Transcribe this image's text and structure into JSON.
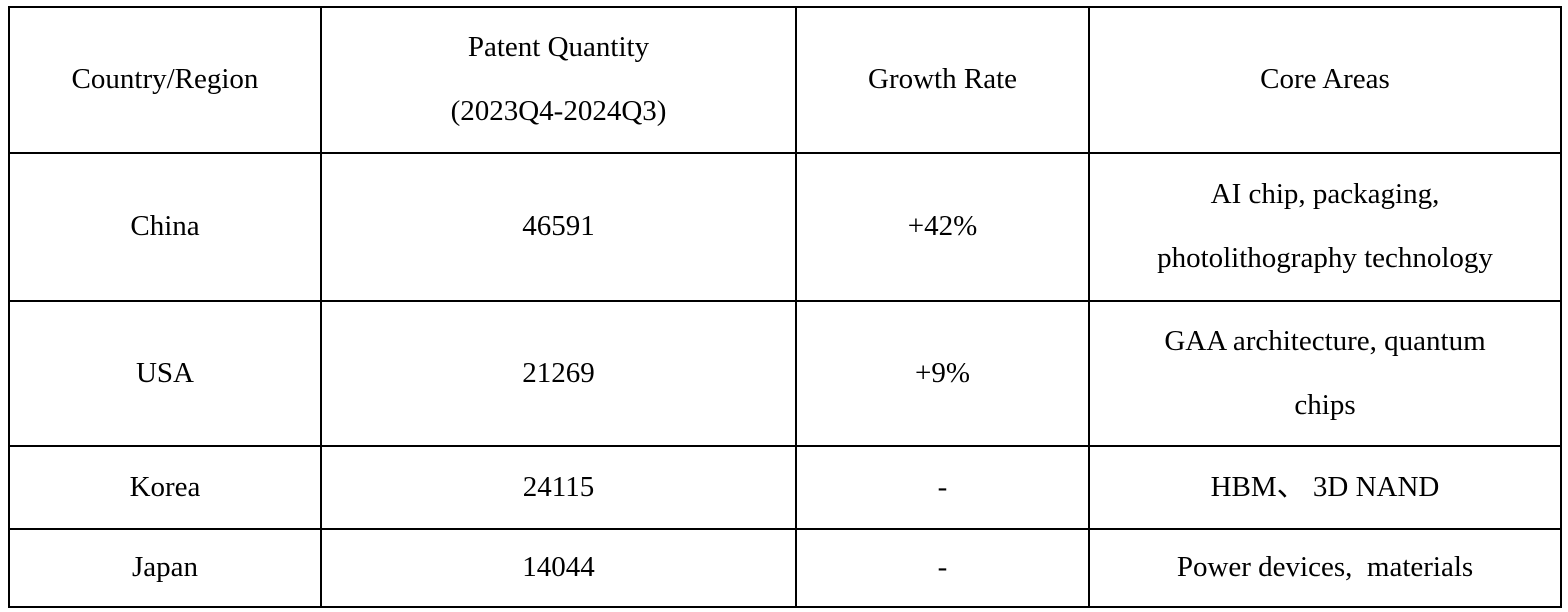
{
  "table": {
    "columns": [
      {
        "label": "Country/Region"
      },
      {
        "label": "Patent Quantity\n(2023Q4-2024Q3)"
      },
      {
        "label": "Growth Rate"
      },
      {
        "label": "Core Areas"
      }
    ],
    "rows": [
      {
        "country": "China",
        "patent_quantity": "46591",
        "growth_rate": "+42%",
        "core_areas": "AI chip, packaging,\nphotolithography technology"
      },
      {
        "country": "USA",
        "patent_quantity": "21269",
        "growth_rate": "+9%",
        "core_areas": "GAA architecture, quantum\nchips"
      },
      {
        "country": "Korea",
        "patent_quantity": "24115",
        "growth_rate": "-",
        "core_areas": "HBM、 3D NAND"
      },
      {
        "country": "Japan",
        "patent_quantity": "14044",
        "growth_rate": "-",
        "core_areas": "Power devices,  materials"
      }
    ]
  }
}
